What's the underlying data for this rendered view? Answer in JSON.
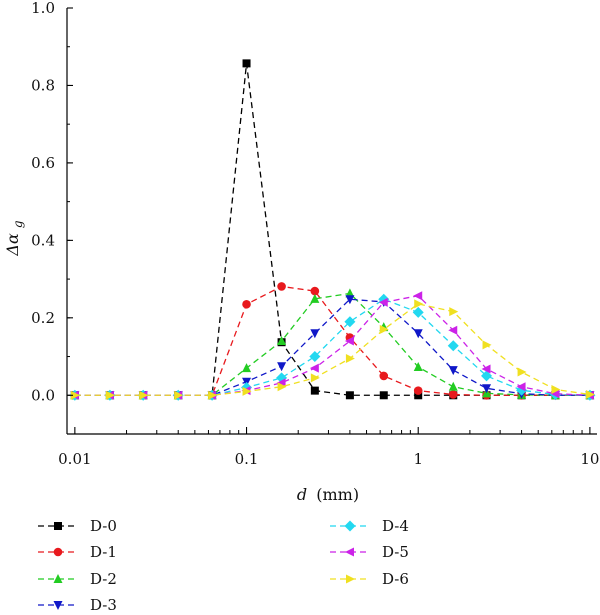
{
  "chart_data": {
    "type": "line",
    "xlabel_var": "d",
    "xlabel_unit": "(mm)",
    "ylabel_base": "Δα",
    "ylabel_sub": "g",
    "x_scale": "log",
    "xlim": [
      0.009,
      11
    ],
    "ylim": [
      -0.1,
      1.0
    ],
    "x_ticks": [
      0.01,
      0.1,
      1,
      10
    ],
    "x_tick_labels": [
      "0.01",
      "0.1",
      "1",
      "10"
    ],
    "y_ticks": [
      0.0,
      0.2,
      0.4,
      0.6,
      0.8,
      1.0
    ],
    "y_tick_labels": [
      "0.0",
      "0.2",
      "0.4",
      "0.6",
      "0.8",
      "1.0"
    ],
    "grid": false,
    "legend_position": "bottom",
    "x": [
      0.01,
      0.016,
      0.025,
      0.04,
      0.063,
      0.1,
      0.16,
      0.25,
      0.4,
      0.63,
      1.0,
      1.6,
      2.5,
      4.0,
      6.3,
      10.0
    ],
    "series": [
      {
        "name": "D-0",
        "color": "#000000",
        "marker": "square",
        "values": [
          0,
          0,
          0,
          0,
          0,
          0.857,
          0.137,
          0.012,
          0.0,
          0.0,
          0.0,
          0.0,
          0.0,
          0.0,
          0.0,
          0.0
        ]
      },
      {
        "name": "D-1",
        "color": "#e8191d",
        "marker": "circle",
        "values": [
          0,
          0,
          0,
          0,
          0,
          0.235,
          0.281,
          0.269,
          0.149,
          0.05,
          0.012,
          0.002,
          0.0,
          0.0,
          0.0,
          0.0
        ]
      },
      {
        "name": "D-2",
        "color": "#22cc22",
        "marker": "triangle-up",
        "values": [
          0,
          0,
          0,
          0,
          0,
          0.07,
          0.14,
          0.249,
          0.263,
          0.176,
          0.073,
          0.022,
          0.005,
          0.001,
          0.0,
          0.0
        ]
      },
      {
        "name": "D-3",
        "color": "#1018c8",
        "marker": "triangle-down",
        "values": [
          0,
          0,
          0,
          0,
          0,
          0.035,
          0.075,
          0.16,
          0.248,
          0.241,
          0.16,
          0.065,
          0.018,
          0.004,
          0.0,
          0.0
        ]
      },
      {
        "name": "D-4",
        "color": "#22d8f0",
        "marker": "diamond",
        "values": [
          0,
          0,
          0,
          0,
          0,
          0.02,
          0.045,
          0.1,
          0.19,
          0.248,
          0.214,
          0.128,
          0.05,
          0.013,
          0.002,
          0.0
        ]
      },
      {
        "name": "D-5",
        "color": "#cc22e8",
        "marker": "triangle-left",
        "values": [
          0,
          0,
          0,
          0,
          0,
          0.012,
          0.032,
          0.07,
          0.14,
          0.24,
          0.257,
          0.168,
          0.068,
          0.022,
          0.004,
          0.0
        ]
      },
      {
        "name": "D-6",
        "color": "#f0e020",
        "marker": "triangle-right",
        "values": [
          0,
          0,
          0,
          0,
          0,
          0.01,
          0.022,
          0.045,
          0.095,
          0.17,
          0.236,
          0.216,
          0.13,
          0.06,
          0.015,
          0.002
        ]
      }
    ]
  }
}
